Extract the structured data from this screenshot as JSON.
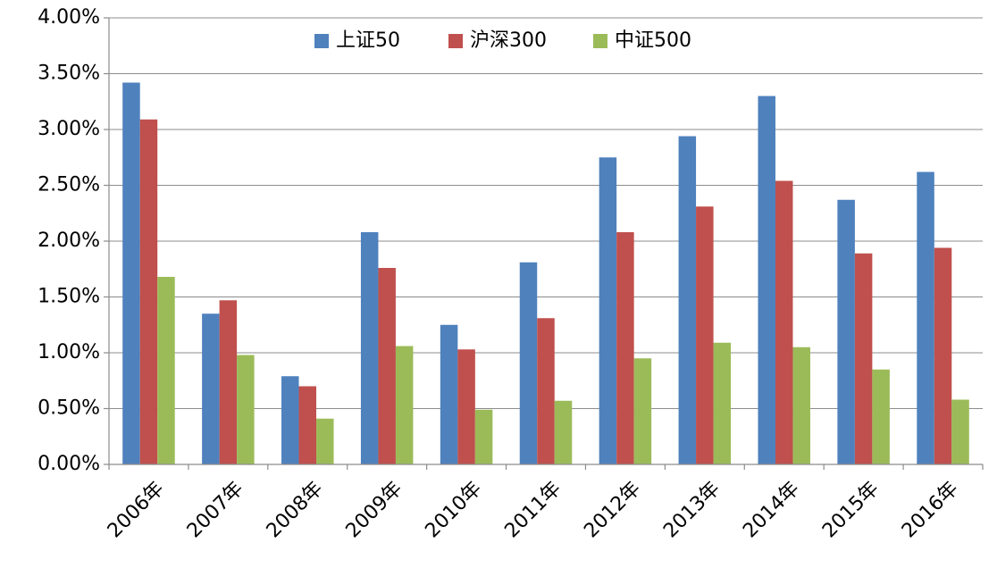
{
  "chart_data": {
    "type": "bar",
    "title": "",
    "xlabel": "",
    "ylabel": "",
    "categories": [
      "2006年",
      "2007年",
      "2008年",
      "2009年",
      "2010年",
      "2011年",
      "2012年",
      "2013年",
      "2014年",
      "2015年",
      "2016年"
    ],
    "series": [
      {
        "name": "上证50",
        "color": "#4f81bd",
        "values": [
          3.42,
          1.35,
          0.79,
          2.08,
          1.25,
          1.81,
          2.75,
          2.94,
          3.3,
          2.37,
          2.62
        ]
      },
      {
        "name": "沪深300",
        "color": "#c0504d",
        "values": [
          3.09,
          1.47,
          0.7,
          1.76,
          1.03,
          1.31,
          2.08,
          2.31,
          2.54,
          1.89,
          1.94
        ]
      },
      {
        "name": "中证500",
        "color": "#9bbb59",
        "values": [
          1.68,
          0.98,
          0.41,
          1.06,
          0.49,
          0.57,
          0.95,
          1.09,
          1.05,
          0.85,
          0.58
        ]
      }
    ],
    "ylim": [
      0,
      4.0
    ],
    "yticks": [
      "0.00%",
      "0.50%",
      "1.00%",
      "1.50%",
      "2.00%",
      "2.50%",
      "3.00%",
      "3.50%",
      "4.00%"
    ],
    "ytick_values": [
      0,
      0.5,
      1.0,
      1.5,
      2.0,
      2.5,
      3.0,
      3.5,
      4.0
    ],
    "grid": true,
    "legend_position": "top-center"
  }
}
